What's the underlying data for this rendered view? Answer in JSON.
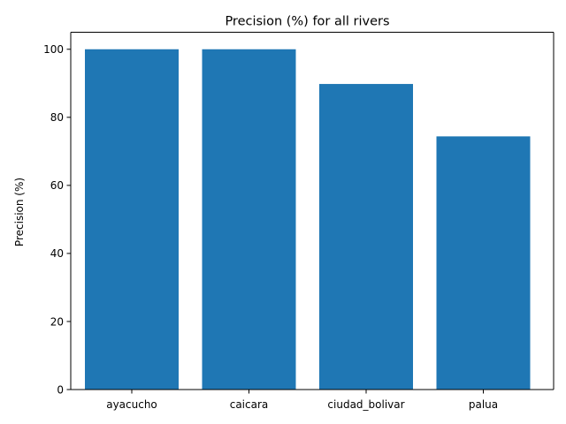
{
  "chart_data": {
    "type": "bar",
    "title": "Precision (%) for all rivers",
    "xlabel": "",
    "ylabel": "Precision (%)",
    "categories": [
      "ayacucho",
      "caicara",
      "ciudad_bolivar",
      "palua"
    ],
    "values": [
      100,
      100,
      89.8,
      74.4
    ],
    "ylim": [
      0,
      105
    ],
    "yticks": [
      0,
      20,
      40,
      60,
      80,
      100
    ],
    "bar_color": "#1f77b4",
    "grid": false,
    "legend": "none"
  }
}
